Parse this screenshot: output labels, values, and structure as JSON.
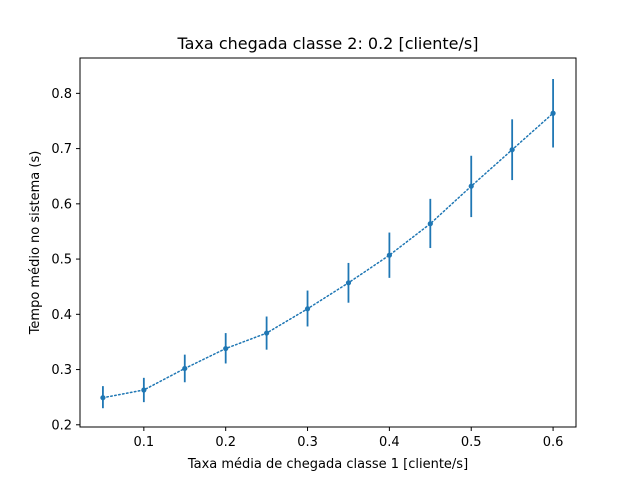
{
  "chart_data": {
    "type": "scatter",
    "title": "Taxa chegada classe 2: 0.2 [cliente/s]",
    "xlabel": "Taxa média de chegada classe 1 [cliente/s]",
    "ylabel": "Tempo médio no sistema (s)",
    "xlim": [
      0.022,
      0.628
    ],
    "ylim": [
      0.196,
      0.864
    ],
    "xticks": [
      0.1,
      0.2,
      0.3,
      0.4,
      0.5,
      0.6
    ],
    "xtick_labels": [
      "0.1",
      "0.2",
      "0.3",
      "0.4",
      "0.5",
      "0.6"
    ],
    "yticks": [
      0.2,
      0.3,
      0.4,
      0.5,
      0.6,
      0.7,
      0.8
    ],
    "ytick_labels": [
      "0.2",
      "0.3",
      "0.4",
      "0.5",
      "0.6",
      "0.7",
      "0.8"
    ],
    "grid": false,
    "series": [
      {
        "line_style": "dotted",
        "marker": "circle",
        "error_bars": true,
        "color": "#1f77b4",
        "x": [
          0.05,
          0.1,
          0.15,
          0.2,
          0.25,
          0.3,
          0.35,
          0.4,
          0.45,
          0.5,
          0.55,
          0.6
        ],
        "y": [
          0.249,
          0.263,
          0.302,
          0.338,
          0.366,
          0.41,
          0.457,
          0.507,
          0.564,
          0.632,
          0.698,
          0.764
        ],
        "y_lower": [
          0.23,
          0.241,
          0.277,
          0.311,
          0.336,
          0.378,
          0.421,
          0.466,
          0.52,
          0.576,
          0.643,
          0.702
        ],
        "y_upper": [
          0.27,
          0.285,
          0.327,
          0.366,
          0.396,
          0.443,
          0.493,
          0.548,
          0.609,
          0.687,
          0.753,
          0.826
        ]
      }
    ]
  }
}
